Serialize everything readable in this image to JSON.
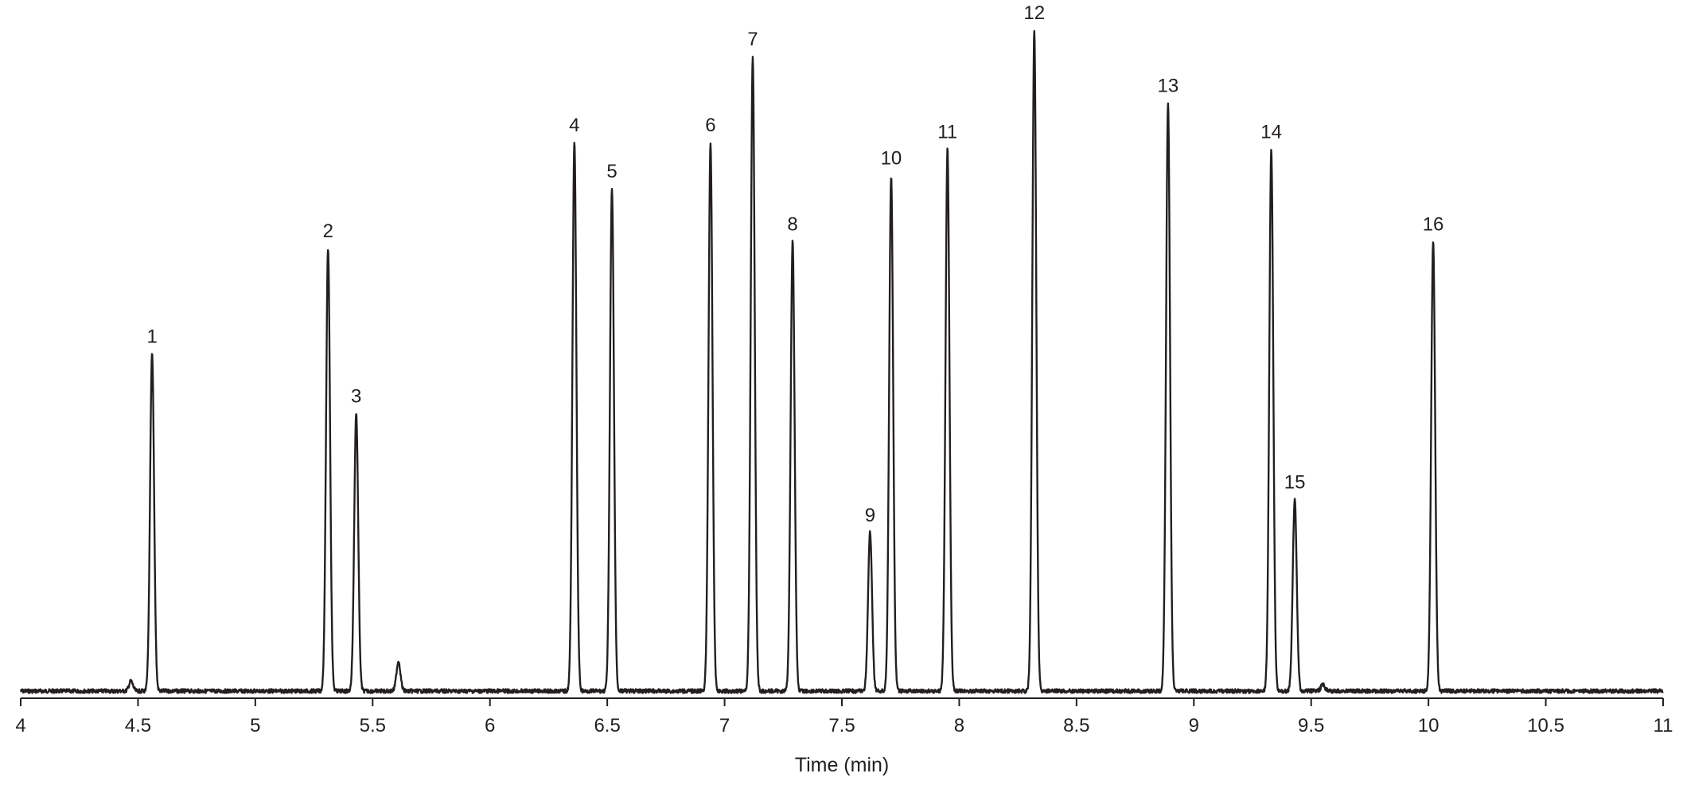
{
  "chart_data": {
    "type": "line",
    "title": "",
    "xlabel": "Time (min)",
    "ylabel": "",
    "xlim": [
      4,
      11
    ],
    "xticks": [
      "4",
      "4.5",
      "5",
      "5.5",
      "6",
      "6.5",
      "7",
      "7.5",
      "8",
      "8.5",
      "9",
      "9.5",
      "10",
      "10.5",
      "11"
    ],
    "grid": false,
    "line_color": "#231f20",
    "peaks": [
      {
        "label": "1",
        "rt": 4.56,
        "height": 0.51
      },
      {
        "label": "2",
        "rt": 5.31,
        "height": 0.67
      },
      {
        "label": "3",
        "rt": 5.43,
        "height": 0.42
      },
      {
        "label": "4",
        "rt": 6.36,
        "height": 0.83
      },
      {
        "label": "5",
        "rt": 6.52,
        "height": 0.76
      },
      {
        "label": "6",
        "rt": 6.94,
        "height": 0.83
      },
      {
        "label": "7",
        "rt": 7.12,
        "height": 0.96
      },
      {
        "label": "8",
        "rt": 7.29,
        "height": 0.68
      },
      {
        "label": "9",
        "rt": 7.62,
        "height": 0.24
      },
      {
        "label": "10",
        "rt": 7.71,
        "height": 0.78
      },
      {
        "label": "11",
        "rt": 7.95,
        "height": 0.82
      },
      {
        "label": "12",
        "rt": 8.32,
        "height": 1.0
      },
      {
        "label": "13",
        "rt": 8.89,
        "height": 0.89
      },
      {
        "label": "14",
        "rt": 9.33,
        "height": 0.82
      },
      {
        "label": "15",
        "rt": 9.43,
        "height": 0.29
      },
      {
        "label": "16",
        "rt": 10.02,
        "height": 0.68
      }
    ],
    "unlabeled_peaks": [
      {
        "rt": 4.47,
        "height": 0.015
      },
      {
        "rt": 5.61,
        "height": 0.045
      },
      {
        "rt": 9.55,
        "height": 0.01
      }
    ]
  }
}
